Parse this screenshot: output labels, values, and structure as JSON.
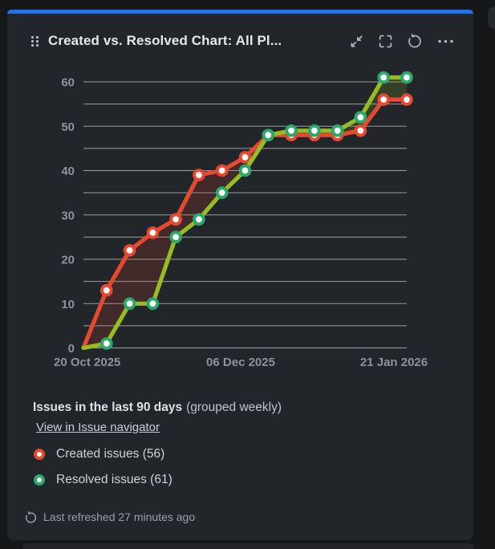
{
  "widget": {
    "title": "Created vs. Resolved Chart: All Pl...",
    "header_buttons": [
      {
        "icon": "collapse-icon",
        "action": "collapse"
      },
      {
        "icon": "fullscreen-icon",
        "action": "fullscreen"
      },
      {
        "icon": "refresh-icon",
        "action": "refresh"
      },
      {
        "icon": "more-options-icon",
        "action": "more options"
      }
    ],
    "summary_title": "Issues in the last 90 days",
    "summary_suffix": "(grouped weekly)",
    "link_label": "View in Issue navigator",
    "last_refreshed": "Last refreshed 27 minutes ago",
    "accent_color": "#2273f2",
    "card_background": "#22252a"
  },
  "footer_legend": [
    {
      "label": "Created issues (56)",
      "marker_color": "#e54a30"
    },
    {
      "label": "Resolved issues (61)",
      "marker_color": "#2ca86b"
    }
  ],
  "chart_data": {
    "type": "line",
    "title": "Created vs. Resolved Chart",
    "x_tick_labels": [
      "20 Oct 2025",
      "06 Dec 2025",
      "21 Jan 2026"
    ],
    "y_ticks": [
      0,
      10,
      20,
      30,
      40,
      50,
      60
    ],
    "ylim": [
      0,
      60
    ],
    "gridline_step": 5,
    "grid": true,
    "legend_position": "bottom",
    "points_per_series": 15,
    "cross_index": 8,
    "series": [
      {
        "name": "Created issues",
        "total": 56,
        "line_color": "#e54a30",
        "marker_color": "#e54a30",
        "values": [
          0,
          13,
          22,
          26,
          29,
          39,
          40,
          43,
          48,
          48,
          48,
          48,
          49,
          56,
          56
        ]
      },
      {
        "name": "Resolved issues",
        "total": 61,
        "line_color": "#97bc23",
        "marker_color": "#2ca86b",
        "values": [
          0,
          1,
          10,
          10,
          25,
          29,
          35,
          40,
          48,
          49,
          49,
          49,
          52,
          61,
          61
        ]
      }
    ],
    "fill_created_above": "rgba(229,74,48,0.17)",
    "fill_resolved_above": "rgba(151,188,35,0.18)",
    "gridline_color": "#b2b5b9",
    "axis_label_color": "#8d9399"
  }
}
